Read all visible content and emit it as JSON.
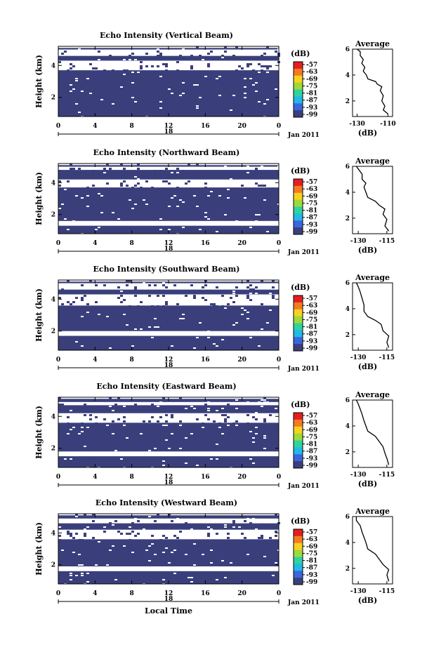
{
  "chart_data": [
    {
      "type": "heatmap",
      "title": "Echo Intensity (Vertical Beam)",
      "ylabel": "Height (km)",
      "x_tick_labels": [
        "0",
        "4",
        "8",
        "12",
        "16",
        "20",
        "0"
      ],
      "day_label": "18",
      "month_label": "Jan 2011",
      "ylim": [
        0.8,
        5.2
      ],
      "y_ticks": [
        2,
        4
      ],
      "colorbar": {
        "unit": "(dB)",
        "labels": [
          "-57",
          "-63",
          "-69",
          "-75",
          "-81",
          "-87",
          "-93",
          "-99"
        ]
      },
      "fill_color": "#3a3f7c",
      "fill_bands_km": [
        [
          0.8,
          3.7
        ],
        [
          4.3,
          4.6
        ],
        [
          5.0,
          5.1
        ]
      ],
      "profile": {
        "title": "Average",
        "xlabel": "(dB)",
        "x_tick_labels": [
          "-130",
          "-110"
        ],
        "xlim": [
          -133,
          -107
        ],
        "y_tick_labels": [
          "2",
          "4",
          "6"
        ],
        "ylim": [
          0.8,
          6
        ],
        "points": [
          [
            -110,
            1.0
          ],
          [
            -113,
            1.3
          ],
          [
            -112,
            1.6
          ],
          [
            -114,
            2.0
          ],
          [
            -113,
            2.4
          ],
          [
            -115,
            2.8
          ],
          [
            -114,
            3.1
          ],
          [
            -117,
            3.3
          ],
          [
            -118,
            3.5
          ],
          [
            -123,
            3.7
          ],
          [
            -124,
            4.0
          ],
          [
            -126,
            4.3
          ],
          [
            -125,
            4.6
          ],
          [
            -127,
            4.9
          ],
          [
            -126,
            5.2
          ],
          [
            -128,
            5.5
          ],
          [
            -128,
            5.8
          ],
          [
            -130,
            6.0
          ]
        ]
      }
    },
    {
      "type": "heatmap",
      "title": "Echo Intensity (Northward Beam)",
      "ylabel": "Height (km)",
      "x_tick_labels": [
        "0",
        "4",
        "8",
        "12",
        "16",
        "20",
        "0"
      ],
      "day_label": "18",
      "month_label": "Jan 2011",
      "ylim": [
        0.8,
        5.2
      ],
      "y_ticks": [
        2,
        4
      ],
      "colorbar": {
        "unit": "(dB)",
        "labels": [
          "-57",
          "-63",
          "-69",
          "-75",
          "-81",
          "-87",
          "-93",
          "-99"
        ]
      },
      "fill_color": "#3a3f7c",
      "fill_bands_km": [
        [
          0.8,
          1.3
        ],
        [
          1.6,
          3.7
        ],
        [
          4.2,
          4.8
        ],
        [
          5.0,
          5.1
        ]
      ],
      "profile": {
        "title": "Average",
        "xlabel": "(dB)",
        "x_tick_labels": [
          "-130",
          "-115"
        ],
        "xlim": [
          -133,
          -112
        ],
        "y_tick_labels": [
          "2",
          "4",
          "6"
        ],
        "ylim": [
          0.8,
          6
        ],
        "points": [
          [
            -114,
            1.0
          ],
          [
            -116,
            1.4
          ],
          [
            -115,
            1.9
          ],
          [
            -117,
            2.3
          ],
          [
            -116,
            2.7
          ],
          [
            -119,
            3.0
          ],
          [
            -121,
            3.3
          ],
          [
            -125,
            3.6
          ],
          [
            -126,
            4.0
          ],
          [
            -127,
            4.4
          ],
          [
            -126,
            4.7
          ],
          [
            -128,
            5.0
          ],
          [
            -128,
            5.4
          ],
          [
            -130,
            5.8
          ],
          [
            -131,
            6.0
          ]
        ]
      }
    },
    {
      "type": "heatmap",
      "title": "Echo Intensity (Southward Beam)",
      "ylabel": "Height (km)",
      "x_tick_labels": [
        "0",
        "4",
        "8",
        "12",
        "16",
        "20",
        "0"
      ],
      "day_label": "18",
      "month_label": "Jan 2011",
      "ylim": [
        0.8,
        5.2
      ],
      "y_ticks": [
        2,
        4
      ],
      "colorbar": {
        "unit": "(dB)",
        "labels": [
          "-57",
          "-63",
          "-69",
          "-75",
          "-81",
          "-87",
          "-93",
          "-99"
        ]
      },
      "fill_color": "#3a3f7c",
      "fill_bands_km": [
        [
          0.8,
          1.7
        ],
        [
          2.0,
          3.6
        ],
        [
          4.3,
          4.6
        ],
        [
          5.0,
          5.1
        ]
      ],
      "profile": {
        "title": "Average",
        "xlabel": "(dB)",
        "x_tick_labels": [
          "-130",
          "-115"
        ],
        "xlim": [
          -133,
          -112
        ],
        "y_tick_labels": [
          "2",
          "4",
          "6"
        ],
        "ylim": [
          0.8,
          6
        ],
        "points": [
          [
            -114,
            1.0
          ],
          [
            -115,
            1.4
          ],
          [
            -114,
            1.9
          ],
          [
            -117,
            2.3
          ],
          [
            -118,
            2.8
          ],
          [
            -121,
            3.1
          ],
          [
            -125,
            3.4
          ],
          [
            -127,
            3.8
          ],
          [
            -127,
            4.3
          ],
          [
            -128,
            4.8
          ],
          [
            -129,
            5.3
          ],
          [
            -130,
            5.7
          ],
          [
            -131,
            6.0
          ]
        ]
      }
    },
    {
      "type": "heatmap",
      "title": "Echo Intensity (Eastward Beam)",
      "ylabel": "Height (km)",
      "x_tick_labels": [
        "0",
        "4",
        "8",
        "12",
        "16",
        "20",
        "0"
      ],
      "day_label": "18",
      "month_label": "Jan 2011",
      "ylim": [
        0.8,
        5.2
      ],
      "y_ticks": [
        2,
        4
      ],
      "colorbar": {
        "unit": "(dB)",
        "labels": [
          "-57",
          "-63",
          "-69",
          "-75",
          "-81",
          "-87",
          "-93",
          "-99"
        ]
      },
      "fill_color": "#3a3f7c",
      "fill_bands_km": [
        [
          0.8,
          1.5
        ],
        [
          1.8,
          3.6
        ],
        [
          4.2,
          4.7
        ],
        [
          4.9,
          5.1
        ]
      ],
      "profile": {
        "title": "Average",
        "xlabel": "(dB)",
        "x_tick_labels": [
          "-130",
          "-115"
        ],
        "xlim": [
          -133,
          -112
        ],
        "y_tick_labels": [
          "2",
          "4",
          "6"
        ],
        "ylim": [
          0.8,
          6
        ],
        "points": [
          [
            -114,
            1.0
          ],
          [
            -115,
            1.5
          ],
          [
            -116,
            1.9
          ],
          [
            -117,
            2.4
          ],
          [
            -119,
            2.8
          ],
          [
            -121,
            3.2
          ],
          [
            -125,
            3.6
          ],
          [
            -126,
            4.0
          ],
          [
            -127,
            4.4
          ],
          [
            -128,
            4.9
          ],
          [
            -129,
            5.3
          ],
          [
            -130,
            5.7
          ],
          [
            -131,
            6.0
          ]
        ]
      }
    },
    {
      "type": "heatmap",
      "title": "Echo Intensity (Westward Beam)",
      "ylabel": "Height (km)",
      "x_tick_labels": [
        "0",
        "4",
        "8",
        "12",
        "16",
        "20",
        "0"
      ],
      "day_label": "18",
      "month_label": "Jan 2011",
      "xlabel": "Local Time",
      "ylim": [
        0.8,
        5.2
      ],
      "y_ticks": [
        2,
        4
      ],
      "colorbar": {
        "unit": "(dB)",
        "labels": [
          "-57",
          "-63",
          "-69",
          "-75",
          "-81",
          "-87",
          "-93",
          "-99"
        ]
      },
      "fill_color": "#3a3f7c",
      "fill_bands_km": [
        [
          0.8,
          1.6
        ],
        [
          1.9,
          3.6
        ],
        [
          4.2,
          4.6
        ],
        [
          4.9,
          5.1
        ]
      ],
      "profile": {
        "title": "Average",
        "xlabel": "(dB)",
        "x_tick_labels": [
          "-130",
          "-115"
        ],
        "xlim": [
          -133,
          -112
        ],
        "y_tick_labels": [
          "2",
          "4",
          "6"
        ],
        "ylim": [
          0.8,
          6
        ],
        "points": [
          [
            -114,
            1.0
          ],
          [
            -115,
            1.5
          ],
          [
            -114,
            1.9
          ],
          [
            -117,
            2.3
          ],
          [
            -119,
            2.7
          ],
          [
            -121,
            3.1
          ],
          [
            -125,
            3.5
          ],
          [
            -126,
            4.0
          ],
          [
            -127,
            4.4
          ],
          [
            -128,
            4.8
          ],
          [
            -129,
            5.3
          ],
          [
            -131,
            5.7
          ],
          [
            -131,
            6.0
          ]
        ]
      }
    }
  ]
}
